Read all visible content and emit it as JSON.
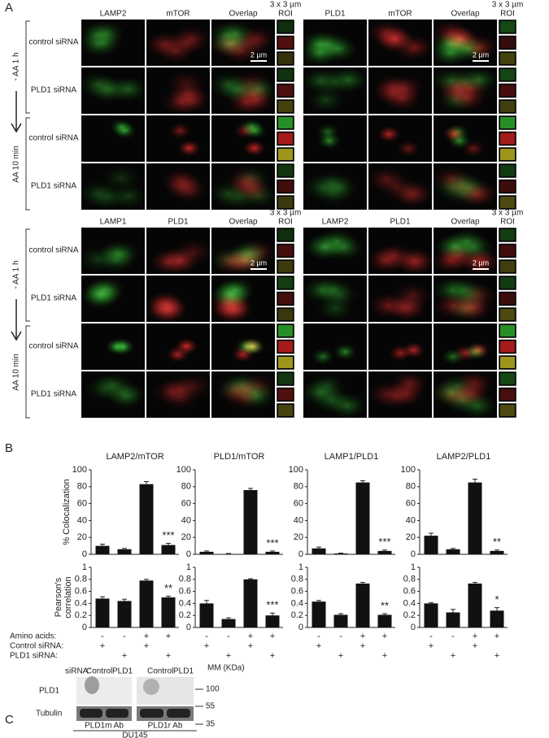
{
  "panel_a": {
    "label": "A",
    "blocks": [
      {
        "columns": [
          "LAMP2",
          "mTOR",
          "Overlap"
        ],
        "roi": [
          "3 x 3 µm",
          "ROI"
        ],
        "scale_bar": "2 µm"
      },
      {
        "columns": [
          "PLD1",
          "mTOR",
          "Overlap"
        ],
        "roi": [
          "3 x 3 µm",
          "ROI"
        ],
        "scale_bar": "2 µm"
      },
      {
        "columns": [
          "LAMP1",
          "PLD1",
          "Overlap"
        ],
        "roi": [
          "3 x 3 µm",
          "ROI"
        ],
        "scale_bar": "2 µm"
      },
      {
        "columns": [
          "LAMP2",
          "PLD1",
          "Overlap"
        ],
        "roi": [
          "3 x 3 µm",
          "ROI"
        ],
        "scale_bar": "2 µm"
      }
    ],
    "row_labels": [
      "control siRNA",
      "PLD1 siRNA",
      "control siRNA",
      "PLD1 siRNA"
    ],
    "groups": [
      "- AA 1 h",
      "AA 10 min"
    ]
  },
  "panel_b": {
    "label": "B",
    "conditions": [
      {
        "label": "Amino acids:",
        "signs": [
          "-",
          "-",
          "+",
          "+"
        ]
      },
      {
        "label": "Control siRNA:",
        "signs": [
          "+",
          null,
          "+",
          null
        ]
      },
      {
        "label": "PLD1 siRNA:",
        "signs": [
          null,
          "+",
          null,
          "+"
        ]
      }
    ]
  },
  "chart_data": [
    {
      "type": "bar",
      "title": "LAMP2/mTOR",
      "ylabel": "% Colocalization",
      "values": [
        10,
        6,
        83,
        11
      ],
      "errors": [
        2,
        1,
        3,
        2
      ],
      "value_annotations": [
        null,
        null,
        null,
        "***"
      ],
      "color": "#111111",
      "ylim": [
        0,
        100
      ],
      "yticks": [
        0,
        20,
        40,
        60,
        80,
        100
      ]
    },
    {
      "type": "bar",
      "title": "PLD1/mTOR",
      "values": [
        3,
        0.5,
        76,
        3
      ],
      "errors": [
        1,
        0.5,
        2,
        1
      ],
      "value_annotations": [
        null,
        null,
        null,
        "***"
      ],
      "color": "#111111",
      "ylim": [
        0,
        100
      ],
      "yticks": [
        0,
        20,
        40,
        60,
        80,
        100
      ]
    },
    {
      "type": "bar",
      "title": "LAMP1/PLD1",
      "values": [
        7,
        1,
        85,
        4
      ],
      "errors": [
        1.5,
        0.5,
        2,
        1
      ],
      "value_annotations": [
        null,
        null,
        null,
        "***"
      ],
      "color": "#111111",
      "ylim": [
        0,
        100
      ],
      "yticks": [
        0,
        20,
        40,
        60,
        80,
        100
      ]
    },
    {
      "type": "bar",
      "title": "LAMP2/PLD1",
      "values": [
        22,
        6,
        85,
        4
      ],
      "errors": [
        3,
        1,
        4,
        1
      ],
      "value_annotations": [
        null,
        null,
        null,
        "**"
      ],
      "color": "#111111",
      "ylim": [
        0,
        100
      ],
      "yticks": [
        0,
        20,
        40,
        60,
        80,
        100
      ]
    },
    {
      "type": "bar",
      "ylabel_lines": [
        "Pearson's",
        "correlation"
      ],
      "values": [
        0.48,
        0.44,
        0.78,
        0.5
      ],
      "errors": [
        0.03,
        0.03,
        0.02,
        0.02
      ],
      "value_annotations": [
        null,
        null,
        null,
        "**"
      ],
      "color": "#111111",
      "ylim": [
        0,
        1
      ],
      "yticks": [
        0,
        0.2,
        0.4,
        0.6,
        0.8,
        1
      ]
    },
    {
      "type": "bar",
      "values": [
        0.4,
        0.14,
        0.8,
        0.2
      ],
      "errors": [
        0.05,
        0.02,
        0.01,
        0.04
      ],
      "value_annotations": [
        null,
        null,
        null,
        "***"
      ],
      "color": "#111111",
      "ylim": [
        0,
        1
      ],
      "yticks": [
        0,
        0.2,
        0.4,
        0.6,
        0.8,
        1
      ]
    },
    {
      "type": "bar",
      "values": [
        0.43,
        0.21,
        0.73,
        0.21
      ],
      "errors": [
        0.02,
        0.02,
        0.02,
        0.02
      ],
      "value_annotations": [
        null,
        null,
        null,
        "**"
      ],
      "color": "#111111",
      "ylim": [
        0,
        1
      ],
      "yticks": [
        0,
        0.2,
        0.4,
        0.6,
        0.8,
        1
      ]
    },
    {
      "type": "bar",
      "values": [
        0.4,
        0.25,
        0.73,
        0.28
      ],
      "errors": [
        0.01,
        0.05,
        0.02,
        0.05
      ],
      "value_annotations": [
        null,
        null,
        null,
        "*"
      ],
      "color": "#111111",
      "ylim": [
        0,
        1
      ],
      "yticks": [
        0,
        0.2,
        0.4,
        0.6,
        0.8,
        1
      ]
    }
  ],
  "panel_c": {
    "label": "C",
    "siRNA_label": "siRNA:",
    "lanes": [
      "Control",
      "PLD1",
      "Control",
      "PLD1"
    ],
    "rows": [
      "PLD1",
      "Tubulin"
    ],
    "mm_label": "MM (KDa)",
    "mm_markers": [
      100,
      55,
      35
    ],
    "antibodies": [
      "PLD1m Ab",
      "PLD1r Ab"
    ],
    "cell_line": "DU145"
  }
}
